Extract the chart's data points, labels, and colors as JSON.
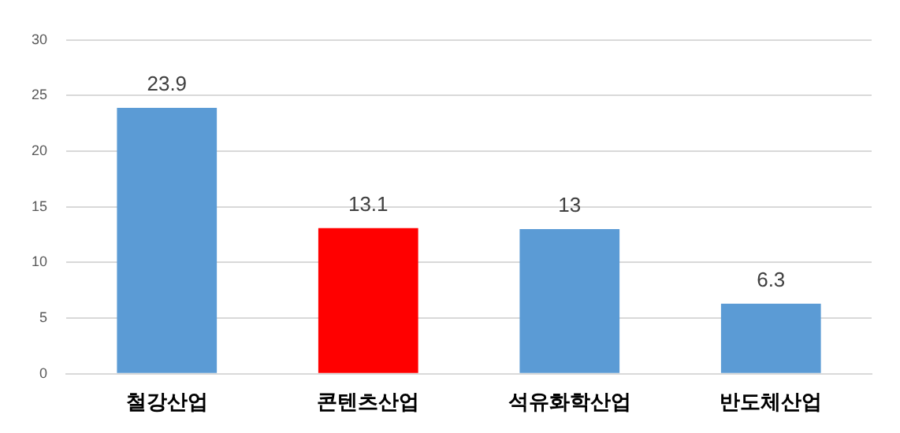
{
  "chart_data": {
    "type": "bar",
    "categories": [
      "철강산업",
      "콘텐츠산업",
      "석유화학산업",
      "반도체산업"
    ],
    "values": [
      23.9,
      13.1,
      13,
      6.3
    ],
    "colors": [
      "#5b9bd5",
      "#ff0000",
      "#5b9bd5",
      "#5b9bd5"
    ],
    "ylim": [
      0,
      30
    ],
    "yticks": [
      0,
      5,
      10,
      15,
      20,
      25,
      30
    ],
    "grid": "y",
    "data_labels": true,
    "legend": false
  }
}
